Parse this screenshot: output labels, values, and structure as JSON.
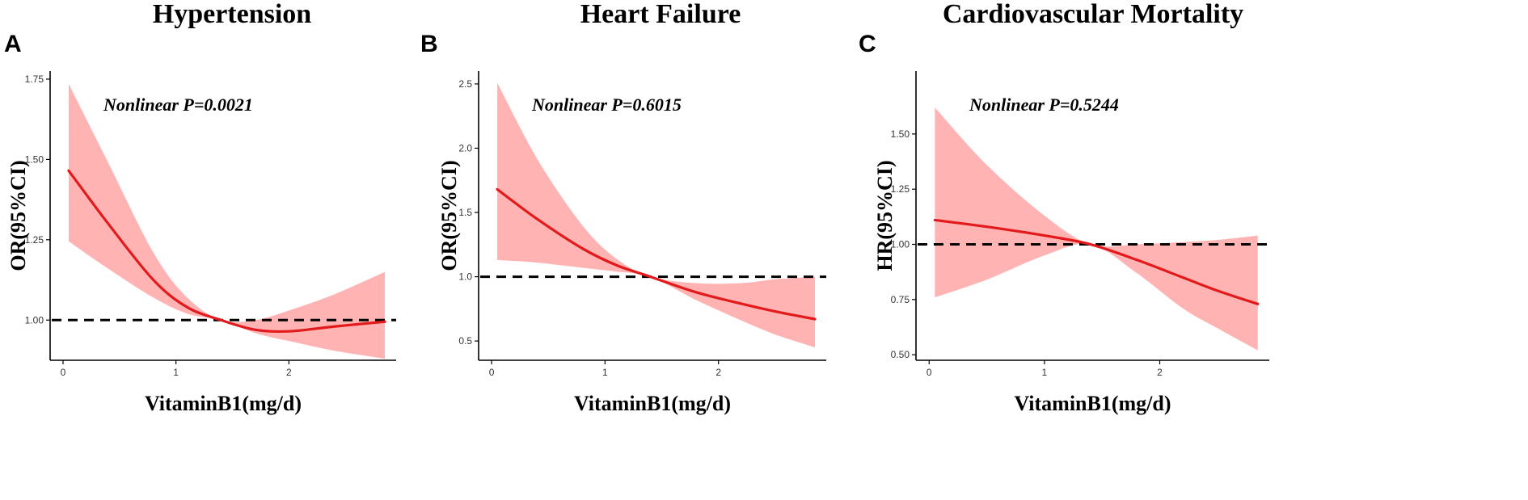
{
  "colors": {
    "curve": "#e31a1c",
    "band": "#ffb3b3",
    "reference": "#000000",
    "axis": "#000000"
  },
  "chart_data": [
    {
      "panel": "A",
      "type": "line",
      "title": "Hypertension",
      "xlabel": "VitaminB1(mg/d)",
      "ylabel": "OR(95%CI)",
      "annotation": "Nonlinear P=0.0021",
      "xlim": [
        -0.1,
        2.95
      ],
      "ylim": [
        0.875,
        1.775
      ],
      "xticks": [
        0,
        1,
        2
      ],
      "xtick_labels": [
        "0",
        "1",
        "2"
      ],
      "yticks": [
        1.0,
        1.25,
        1.5,
        1.75
      ],
      "ytick_labels": [
        "1.00",
        "1.25",
        "1.50",
        "1.75"
      ],
      "reference_y": 1.0,
      "series": [
        {
          "name": "estimate",
          "x": [
            0.05,
            0.4,
            0.8,
            1.1,
            1.4,
            1.7,
            2.0,
            2.4,
            2.85
          ],
          "values": [
            1.465,
            1.3,
            1.125,
            1.04,
            1.0,
            0.97,
            0.965,
            0.98,
            0.995
          ]
        },
        {
          "name": "upper_ci",
          "x": [
            0.05,
            0.4,
            0.8,
            1.1,
            1.4,
            1.7,
            2.0,
            2.4,
            2.85
          ],
          "values": [
            1.735,
            1.49,
            1.21,
            1.07,
            1.0,
            1.0,
            1.03,
            1.08,
            1.15
          ]
        },
        {
          "name": "lower_ci",
          "x": [
            0.05,
            0.4,
            0.8,
            1.1,
            1.4,
            1.7,
            2.0,
            2.4,
            2.85
          ],
          "values": [
            1.245,
            1.16,
            1.07,
            1.02,
            1.0,
            0.96,
            0.935,
            0.905,
            0.88
          ]
        }
      ]
    },
    {
      "panel": "B",
      "type": "line",
      "title": "Heart Failure",
      "xlabel": "VitaminB1(mg/d)",
      "ylabel": "OR(95%CI)",
      "annotation": "Nonlinear P=0.6015",
      "xlim": [
        -0.1,
        2.95
      ],
      "ylim": [
        0.35,
        2.6
      ],
      "xticks": [
        0,
        1,
        2
      ],
      "xtick_labels": [
        "0",
        "1",
        "2"
      ],
      "yticks": [
        0.5,
        1.0,
        1.5,
        2.0,
        2.5
      ],
      "ytick_labels": [
        "0.5",
        "1.0",
        "1.5",
        "2.0",
        "2.5"
      ],
      "reference_y": 1.0,
      "series": [
        {
          "name": "estimate",
          "x": [
            0.05,
            0.4,
            0.8,
            1.1,
            1.4,
            1.8,
            2.2,
            2.5,
            2.85
          ],
          "values": [
            1.68,
            1.45,
            1.22,
            1.09,
            1.0,
            0.88,
            0.79,
            0.73,
            0.67
          ]
        },
        {
          "name": "upper_ci",
          "x": [
            0.05,
            0.4,
            0.8,
            1.1,
            1.4,
            1.8,
            2.2,
            2.5,
            2.85
          ],
          "values": [
            2.51,
            1.92,
            1.4,
            1.14,
            1.0,
            0.95,
            0.95,
            0.98,
            1.0
          ]
        },
        {
          "name": "lower_ci",
          "x": [
            0.05,
            0.4,
            0.8,
            1.1,
            1.4,
            1.8,
            2.2,
            2.5,
            2.85
          ],
          "values": [
            1.13,
            1.11,
            1.07,
            1.04,
            1.0,
            0.82,
            0.66,
            0.55,
            0.45
          ]
        }
      ]
    },
    {
      "panel": "C",
      "type": "line",
      "title": "Cardiovascular Mortality",
      "xlabel": "VitaminB1(mg/d)",
      "ylabel": "HR(95%CI)",
      "annotation": "Nonlinear P=0.5244",
      "xlim": [
        -0.1,
        2.95
      ],
      "ylim": [
        0.475,
        1.785
      ],
      "xticks": [
        0,
        1,
        2
      ],
      "xtick_labels": [
        "0",
        "1",
        "2"
      ],
      "yticks": [
        0.5,
        0.75,
        1.0,
        1.25,
        1.5
      ],
      "ytick_labels": [
        "0.50",
        "0.75",
        "1.00",
        "1.25",
        "1.50"
      ],
      "reference_y": 1.0,
      "series": [
        {
          "name": "estimate",
          "x": [
            0.05,
            0.5,
            1.0,
            1.4,
            1.8,
            2.2,
            2.5,
            2.85
          ],
          "values": [
            1.11,
            1.08,
            1.04,
            1.0,
            0.93,
            0.85,
            0.79,
            0.73
          ]
        },
        {
          "name": "upper_ci",
          "x": [
            0.05,
            0.5,
            1.0,
            1.4,
            1.8,
            2.2,
            2.5,
            2.85
          ],
          "values": [
            1.62,
            1.36,
            1.13,
            1.0,
            1.0,
            1.01,
            1.02,
            1.04
          ]
        },
        {
          "name": "lower_ci",
          "x": [
            0.05,
            0.5,
            1.0,
            1.4,
            1.8,
            2.2,
            2.5,
            2.85
          ],
          "values": [
            0.76,
            0.84,
            0.95,
            1.0,
            0.87,
            0.71,
            0.62,
            0.52
          ]
        }
      ]
    }
  ]
}
